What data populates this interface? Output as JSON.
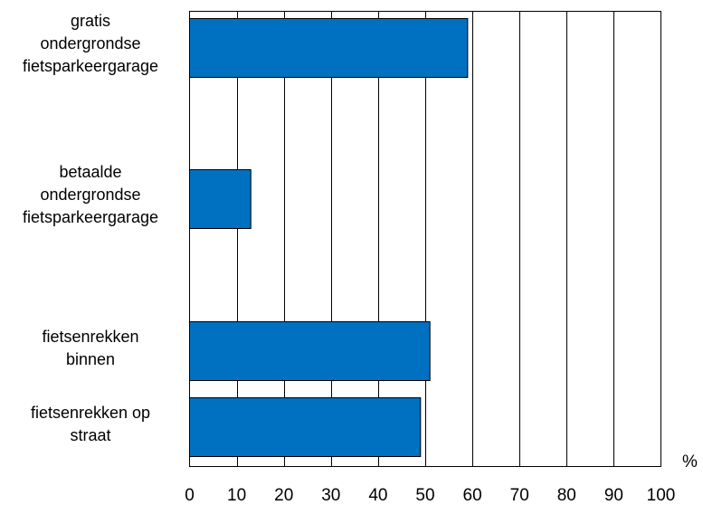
{
  "chart_data": {
    "type": "bar",
    "orientation": "horizontal",
    "categories": [
      "gratis\nondergrondse\nfietsparkeergarage",
      "betaalde\nondergrondse\nfietsparkeergarage",
      "fietsenrekken\nbinnen",
      "fietsenrekken op\nstraat"
    ],
    "values": [
      59,
      13,
      51,
      49
    ],
    "xlim": [
      0,
      100
    ],
    "xticks": [
      0,
      10,
      20,
      30,
      40,
      50,
      60,
      70,
      80,
      90,
      100
    ],
    "xunit": "%",
    "grid": "vertical",
    "colors": {
      "bar": "#0070C0",
      "bar_edge": "#000000",
      "grid": "#000000"
    }
  }
}
